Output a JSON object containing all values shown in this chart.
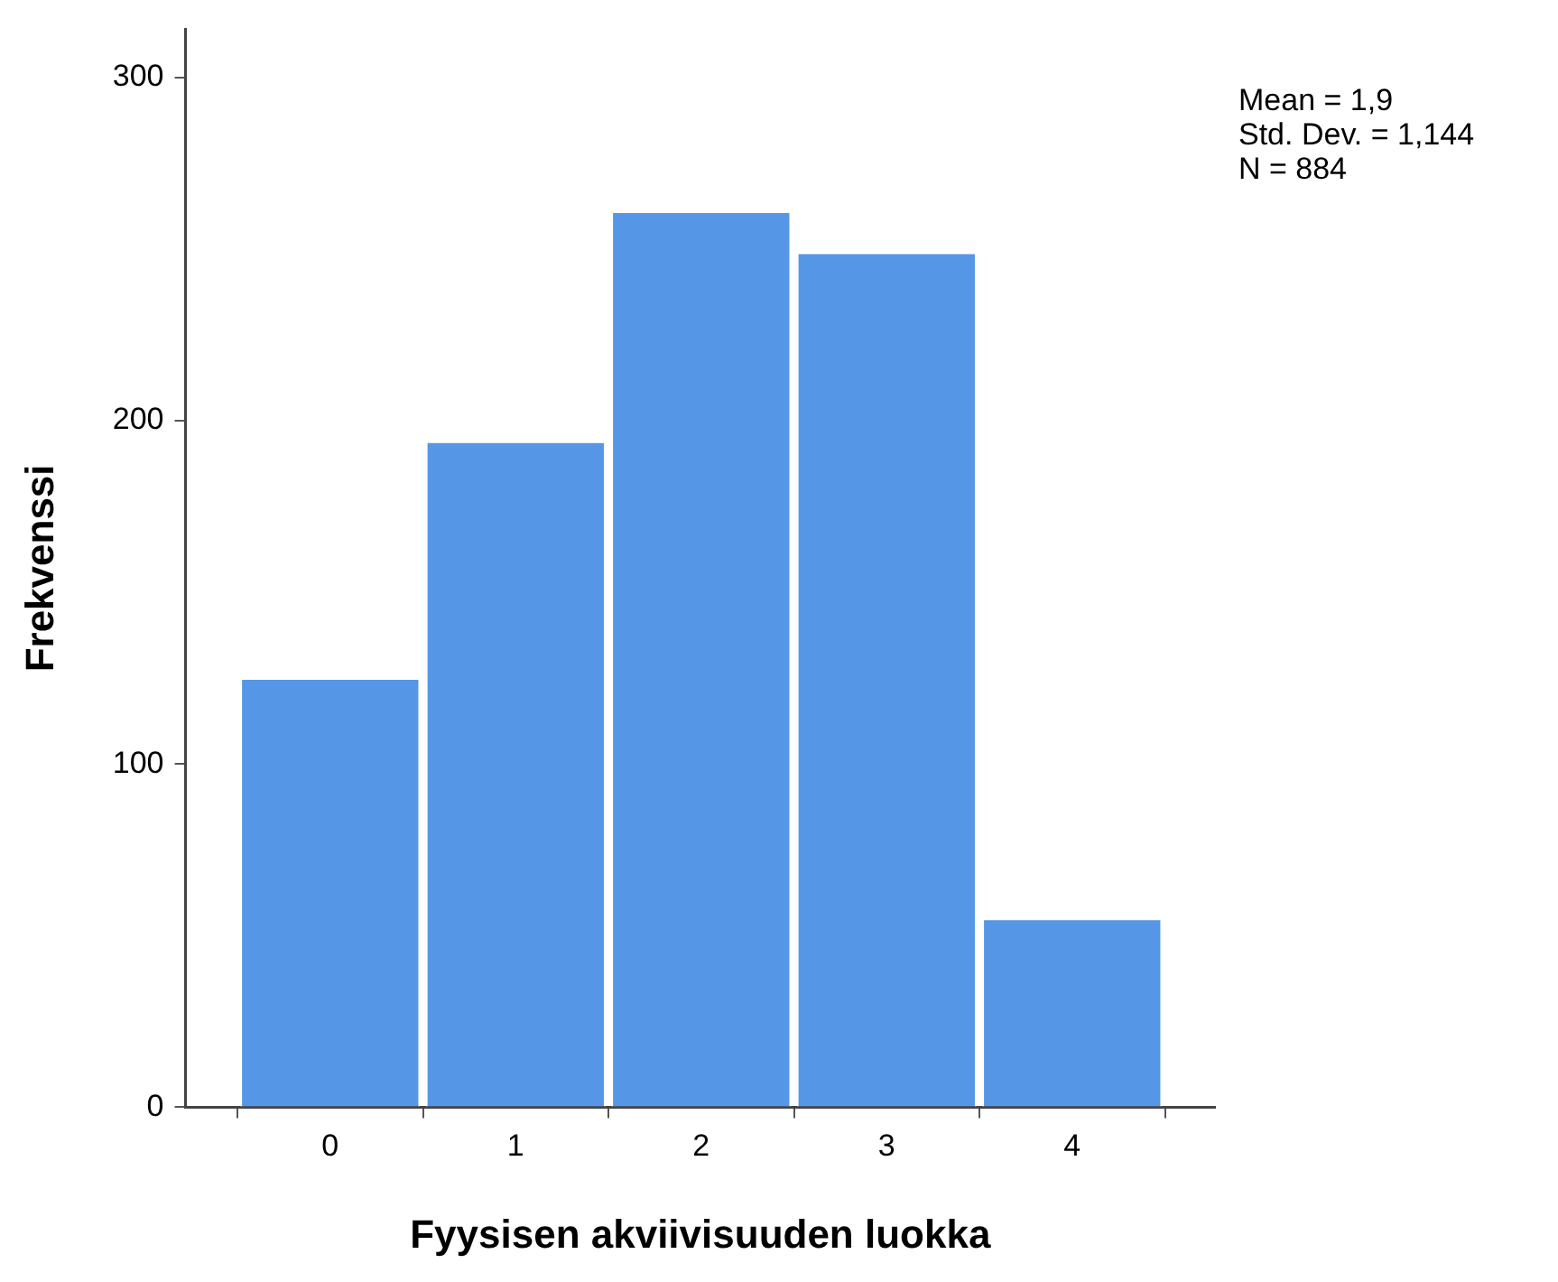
{
  "chart_data": {
    "type": "histogram",
    "xlabel": "Fyysisen akviivisuuden luokka",
    "ylabel": "Frekvenssi",
    "bins": [
      -0.5,
      0.5,
      1.5,
      2.5,
      3.5,
      4.5
    ],
    "values": [
      125,
      194,
      261,
      249,
      55
    ],
    "color": "#5596e6",
    "xlim": [
      -0.78,
      4.77
    ],
    "xticks": [
      0,
      1,
      2,
      3,
      4
    ],
    "ylim": [
      0,
      314
    ],
    "yticks": [
      0,
      100,
      200,
      300
    ],
    "grid": false,
    "legend": false,
    "annotations": [
      "Mean = 1,9",
      "Std. Dev. = 1,144",
      "N = 884"
    ]
  }
}
